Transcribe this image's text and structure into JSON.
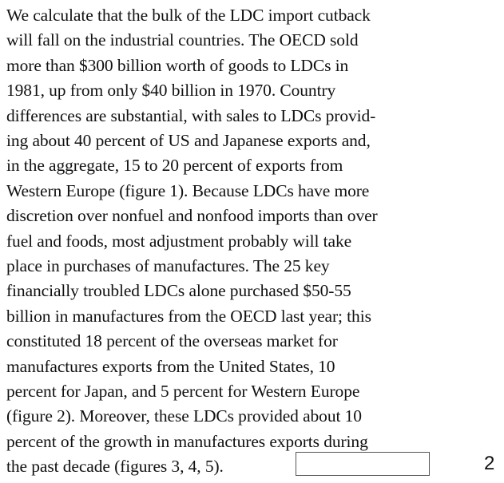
{
  "document": {
    "lines": [
      "We calculate that the bulk of the LDC import cutback",
      "will fall on the industrial countries. The OECD sold",
      "more than $300 billion worth of goods to LDCs in",
      "1981, up from only $40 billion in 1970. Country",
      "differences are substantial, with sales to LDCs provid-",
      "ing about 40 percent of US and Japanese exports and,",
      "in the aggregate, 15 to 20 percent of exports from",
      "Western Europe (figure 1). Because LDCs have more",
      "discretion over nonfuel and nonfood imports than over",
      "fuel and foods, most adjustment probably will take",
      "place in purchases of manufactures. The 25 key",
      "financially troubled LDCs alone purchased $50-55",
      "billion in manufactures from the OECD last year; this",
      "constituted 18 percent of the overseas market for",
      "manufactures exports from the United States, 10",
      "percent for Japan, and 5 percent for Western Europe",
      "(figure 2). Moreover, these LDCs provided about 10",
      "percent of the growth in manufactures exports during",
      "the past decade (figures 3, 4, 5)."
    ],
    "page_number": "2"
  }
}
